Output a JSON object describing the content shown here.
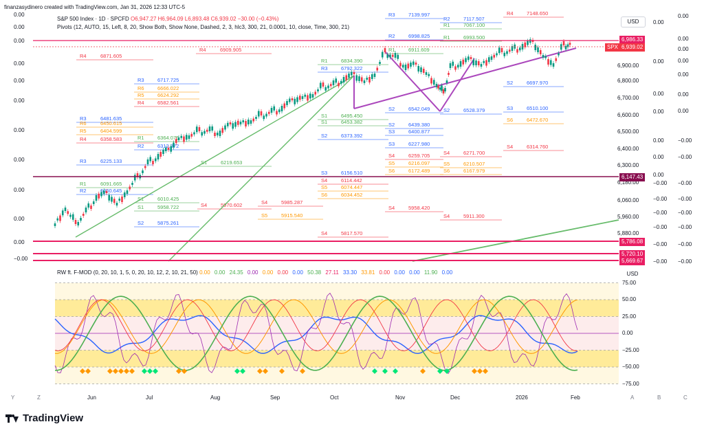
{
  "header": {
    "caption": "finanzasydinero created with TradingView.com, Jan 31, 2026 12:33 UTC-5",
    "symbol_line": "S&P 500 Index · 1D · SPCFD",
    "ohlc": {
      "o": "O6,947.27",
      "h": "H6,964.09",
      "l": "L6,893.48",
      "c": "C6,939.02",
      "change": "−30.00 (−0.43%)"
    },
    "pivots_line": "Pivots (12, AUTO, 15, Left, 8, 20, Show Both, Show None, Dashed, 2, 3, hlc3, 300, 21, 0.0001, 10, close, Time, 300, 21)"
  },
  "currency_top": "USD",
  "currency_bottom": "USD",
  "price_axis": [
    "6,900.00",
    "6,800.00",
    "6,700.00",
    "6,600.00",
    "6,500.00",
    "6,400.00",
    "6,300.00",
    "6,180.00",
    "6,060.00",
    "5,960.00",
    "5,880.00"
  ],
  "left_zero_labels": [
    "0.00",
    "0.00",
    "0.00",
    "0.00",
    "0.00",
    "0.00",
    "0.00",
    "0.00",
    "0.00",
    "0.00",
    "0.00",
    "−0.00",
    "−0.00",
    "−0.00"
  ],
  "right_zero_labels": [
    "0.00",
    "0.00",
    "0.00",
    "0.00",
    "0.00",
    "0.00",
    "0.00",
    "−0.00",
    "−0.00",
    "−0.00",
    "−0.00",
    "−0.00",
    "−0.00",
    "−0.00",
    "−0.00",
    "−0.00",
    "−0.00"
  ],
  "price_tags": [
    {
      "label": "6,986.33",
      "color": "#e91e63"
    },
    {
      "label": "SPX",
      "color": "#f23645"
    },
    {
      "label": "6,939.02",
      "color": "#f23645"
    },
    {
      "label": "6,147.43",
      "color": "#880e4f"
    },
    {
      "label": "5,786.08",
      "color": "#e91e63"
    },
    {
      "label": "5,720.10",
      "color": "#e91e63"
    },
    {
      "label": "5,669.67",
      "color": "#e91e63"
    }
  ],
  "osc_title": "RW ft. F-MOD (0, 20, 10, 1, 5, 0, 20, 10, 12, 2, 10, 21, 50)",
  "osc_values": [
    {
      "v": "0.00",
      "color": "#ff9800"
    },
    {
      "v": "0.00",
      "color": "#4caf50"
    },
    {
      "v": "24.35",
      "color": "#4caf50"
    },
    {
      "v": "0.00",
      "color": "#9c27b0"
    },
    {
      "v": "0.00",
      "color": "#ff9800"
    },
    {
      "v": "0.00",
      "color": "#f23645"
    },
    {
      "v": "0.00",
      "color": "#2962ff"
    },
    {
      "v": "50.38",
      "color": "#4caf50"
    },
    {
      "v": "27.11",
      "color": "#e91e63"
    },
    {
      "v": "33.30",
      "color": "#2962ff"
    },
    {
      "v": "33.81",
      "color": "#ff9800"
    },
    {
      "v": "0.00",
      "color": "#f23645"
    },
    {
      "v": "0.00",
      "color": "#2962ff"
    },
    {
      "v": "0.00",
      "color": "#2962ff"
    },
    {
      "v": "11.90",
      "color": "#4caf50"
    },
    {
      "v": "0.00",
      "color": "#2962ff"
    }
  ],
  "osc_axis": [
    "75.00",
    "50.00",
    "25.00",
    "0.00",
    "−25.00",
    "−50.00",
    "−75.00"
  ],
  "time_axis": [
    "Y",
    "Z",
    "Jun",
    "Jul",
    "Aug",
    "Sep",
    "Oct",
    "Nov",
    "Dec",
    "2026",
    "Feb",
    "A",
    "B",
    "C"
  ],
  "brand": "TradingView",
  "pivot_labels": [
    {
      "t": "R4",
      "c": "#f23645"
    },
    {
      "t": "6871.605",
      "c": "#f23645"
    },
    {
      "t": "R4",
      "c": "#f23645"
    },
    {
      "t": "6909.905",
      "c": "#f23645"
    },
    {
      "t": "R3",
      "c": "#2962ff"
    },
    {
      "t": "6717.725",
      "c": "#2962ff"
    },
    {
      "t": "R6",
      "c": "#ff9800"
    },
    {
      "t": "6666.022",
      "c": "#ff9800"
    },
    {
      "t": "R5",
      "c": "#ff9800"
    },
    {
      "t": "6624.292",
      "c": "#ff9800"
    },
    {
      "t": "R4",
      "c": "#f23645"
    },
    {
      "t": "6582.561",
      "c": "#f23645"
    },
    {
      "t": "R3",
      "c": "#2962ff"
    },
    {
      "t": "6481.635",
      "c": "#2962ff"
    },
    {
      "t": "R6",
      "c": "#ff9800"
    },
    {
      "t": "6450.615",
      "c": "#ff9800"
    },
    {
      "t": "R5",
      "c": "#ff9800"
    },
    {
      "t": "6404.599",
      "c": "#ff9800"
    },
    {
      "t": "R4",
      "c": "#f23645"
    },
    {
      "t": "6358.583",
      "c": "#f23645"
    },
    {
      "t": "R2",
      "c": "#2962ff"
    },
    {
      "t": "6312.372",
      "c": "#2962ff"
    },
    {
      "t": "R1",
      "c": "#4caf50"
    },
    {
      "t": "6364.075",
      "c": "#4caf50"
    },
    {
      "t": "R3",
      "c": "#2962ff"
    },
    {
      "t": "6225.133",
      "c": "#2962ff"
    },
    {
      "t": "S1",
      "c": "#4caf50"
    },
    {
      "t": "6219.653",
      "c": "#4caf50"
    },
    {
      "t": "R1",
      "c": "#4caf50"
    },
    {
      "t": "6091.665",
      "c": "#4caf50"
    },
    {
      "t": "R2",
      "c": "#2962ff"
    },
    {
      "t": "6060.645",
      "c": "#2962ff"
    },
    {
      "t": "S1",
      "c": "#4caf50"
    },
    {
      "t": "6010.425",
      "c": "#4caf50"
    },
    {
      "t": "S1",
      "c": "#4caf50"
    },
    {
      "t": "5958.722",
      "c": "#4caf50"
    },
    {
      "t": "S2",
      "c": "#2962ff"
    },
    {
      "t": "5875.261",
      "c": "#2962ff"
    },
    {
      "t": "S4",
      "c": "#f23645"
    },
    {
      "t": "5970.602",
      "c": "#f23645"
    },
    {
      "t": "S4",
      "c": "#f23645"
    },
    {
      "t": "5985.287",
      "c": "#f23645"
    },
    {
      "t": "S5",
      "c": "#ff9800"
    },
    {
      "t": "5915.540",
      "c": "#ff9800"
    },
    {
      "t": "S4",
      "c": "#f23645"
    },
    {
      "t": "5817.570",
      "c": "#f23645"
    },
    {
      "t": "S4",
      "c": "#f23645"
    },
    {
      "t": "5958.420",
      "c": "#f23645"
    },
    {
      "t": "S4",
      "c": "#f23645"
    },
    {
      "t": "5911.300",
      "c": "#f23645"
    },
    {
      "t": "R2",
      "c": "#2962ff"
    },
    {
      "t": "6998.825",
      "c": "#2962ff"
    },
    {
      "t": "R1",
      "c": "#4caf50"
    },
    {
      "t": "6911.609",
      "c": "#4caf50"
    },
    {
      "t": "R1",
      "c": "#4caf50"
    },
    {
      "t": "6834.390",
      "c": "#4caf50"
    },
    {
      "t": "R3",
      "c": "#2962ff"
    },
    {
      "t": "6792.322",
      "c": "#2962ff"
    },
    {
      "t": "S2",
      "c": "#2962ff"
    },
    {
      "t": "6542.049",
      "c": "#2962ff"
    },
    {
      "t": "S1",
      "c": "#4caf50"
    },
    {
      "t": "6495.450",
      "c": "#4caf50"
    },
    {
      "t": "S1",
      "c": "#4caf50"
    },
    {
      "t": "6453.382",
      "c": "#4caf50"
    },
    {
      "t": "S2",
      "c": "#2962ff"
    },
    {
      "t": "6439.380",
      "c": "#2962ff"
    },
    {
      "t": "S3",
      "c": "#2962ff"
    },
    {
      "t": "6400.877",
      "c": "#2962ff"
    },
    {
      "t": "S2",
      "c": "#2962ff"
    },
    {
      "t": "6373.392",
      "c": "#2962ff"
    },
    {
      "t": "S3",
      "c": "#2962ff"
    },
    {
      "t": "6227.980",
      "c": "#2962ff"
    },
    {
      "t": "S4",
      "c": "#f23645"
    },
    {
      "t": "6259.705",
      "c": "#f23645"
    },
    {
      "t": "S5",
      "c": "#ff9800"
    },
    {
      "t": "6216.097",
      "c": "#ff9800"
    },
    {
      "t": "S6",
      "c": "#ff9800"
    },
    {
      "t": "6172.489",
      "c": "#ff9800"
    },
    {
      "t": "S3",
      "c": "#2962ff"
    },
    {
      "t": "6156.510",
      "c": "#2962ff"
    },
    {
      "t": "S4",
      "c": "#f23645"
    },
    {
      "t": "6114.442",
      "c": "#f23645"
    },
    {
      "t": "S5",
      "c": "#ff9800"
    },
    {
      "t": "6074.447",
      "c": "#ff9800"
    },
    {
      "t": "S6",
      "c": "#ff9800"
    },
    {
      "t": "6034.452",
      "c": "#ff9800"
    },
    {
      "t": "R3",
      "c": "#2962ff"
    },
    {
      "t": "7139.997",
      "c": "#2962ff"
    },
    {
      "t": "R1",
      "c": "#4caf50"
    },
    {
      "t": "7067.100",
      "c": "#4caf50"
    },
    {
      "t": "R1",
      "c": "#4caf50"
    },
    {
      "t": "6993.500",
      "c": "#4caf50"
    },
    {
      "t": "R4",
      "c": "#f23645"
    },
    {
      "t": "7148.650",
      "c": "#f23645"
    },
    {
      "t": "R2",
      "c": "#2962ff"
    },
    {
      "t": "7117.507",
      "c": "#2962ff"
    },
    {
      "t": "S2",
      "c": "#2962ff"
    },
    {
      "t": "6697.970",
      "c": "#2962ff"
    },
    {
      "t": "S2",
      "c": "#2962ff"
    },
    {
      "t": "6528.379",
      "c": "#2962ff"
    },
    {
      "t": "S3",
      "c": "#2962ff"
    },
    {
      "t": "6510.100",
      "c": "#2962ff"
    },
    {
      "t": "S6",
      "c": "#ff9800"
    },
    {
      "t": "6472.670",
      "c": "#ff9800"
    },
    {
      "t": "S4",
      "c": "#f23645"
    },
    {
      "t": "6314.760",
      "c": "#f23645"
    },
    {
      "t": "S4",
      "c": "#f23645"
    },
    {
      "t": "6271.700",
      "c": "#f23645"
    },
    {
      "t": "S5",
      "c": "#ff9800"
    },
    {
      "t": "6210.507",
      "c": "#ff9800"
    },
    {
      "t": "S6",
      "c": "#ff9800"
    },
    {
      "t": "6167.979",
      "c": "#ff9800"
    }
  ]
}
